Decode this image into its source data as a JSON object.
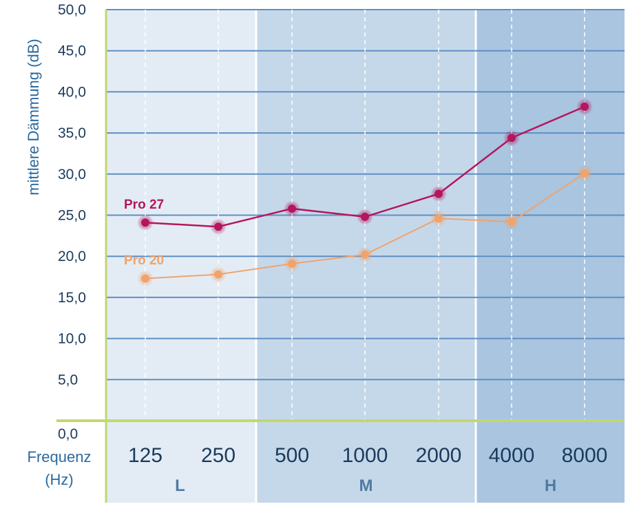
{
  "chart_data": {
    "type": "line",
    "ylabel": "mittlere Dämmung (dB)",
    "xlabel": [
      "Frequenz",
      "(Hz)"
    ],
    "ylim": [
      0,
      50
    ],
    "yticks": [
      "0,0",
      "5,0",
      "10,0",
      "15,0",
      "20,0",
      "25,0",
      "30,0",
      "35,0",
      "40,0",
      "45,0",
      "50,0"
    ],
    "categories": [
      "125",
      "250",
      "500",
      "1000",
      "2000",
      "4000",
      "8000"
    ],
    "bands": [
      {
        "label": "L",
        "from": 0,
        "to": 1,
        "color": "#e3ecf5"
      },
      {
        "label": "M",
        "from": 2,
        "to": 4,
        "color": "#c5d8ea"
      },
      {
        "label": "H",
        "from": 5,
        "to": 6,
        "color": "#a9c5e0"
      }
    ],
    "series": [
      {
        "name": "Pro 27",
        "color": "#b5165e",
        "values": [
          24.1,
          23.6,
          25.8,
          24.8,
          27.6,
          34.4,
          38.2
        ]
      },
      {
        "name": "Pro 20",
        "color": "#f0a36b",
        "values": [
          17.3,
          17.8,
          19.1,
          20.2,
          24.6,
          24.2,
          30.1
        ]
      }
    ]
  }
}
